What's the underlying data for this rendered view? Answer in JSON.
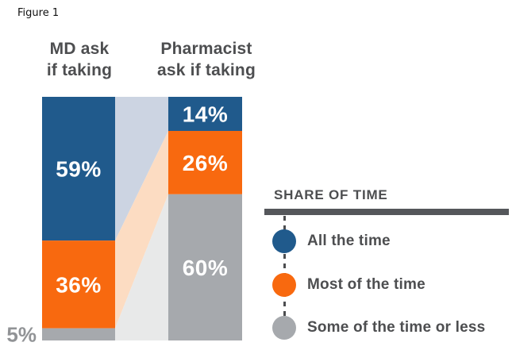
{
  "figure_label": "Figure 1",
  "columns": [
    {
      "title": "MD ask\nif taking"
    },
    {
      "title": "Pharmacist\nask if taking"
    }
  ],
  "chart_data": {
    "type": "bar",
    "subtype": "stacked-100-percent-with-slope-connectors",
    "categories": [
      "MD ask if taking",
      "Pharmacist ask if taking"
    ],
    "series": [
      {
        "name": "All the time",
        "values": [
          59,
          14
        ],
        "color": "#205a8c",
        "band_color": "#ccd4e2"
      },
      {
        "name": "Most of the time",
        "values": [
          36,
          26
        ],
        "color": "#f8690f",
        "band_color": "#fcdcc2"
      },
      {
        "name": "Some of the time or less",
        "values": [
          5,
          60
        ],
        "color": "#a6a9ad",
        "band_color": "#e8e9e9"
      }
    ],
    "value_labels": [
      [
        "59%",
        "36%",
        ""
      ],
      [
        "14%",
        "26%",
        "60%"
      ]
    ],
    "outside_label": "5%",
    "outside_label_color": "#919396",
    "ylim": [
      0,
      100
    ],
    "grid": false,
    "legend_position": "right"
  },
  "legend": {
    "title": "SHARE OF TIME",
    "items": [
      {
        "label": "All the time",
        "color": "#205a8c"
      },
      {
        "label": "Most of the time",
        "color": "#f8690f"
      },
      {
        "label": "Some of the time or less",
        "color": "#a6a9ad"
      }
    ]
  }
}
